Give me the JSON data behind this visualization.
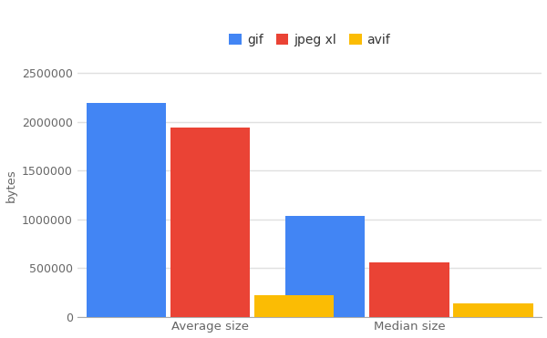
{
  "categories": [
    "Average size",
    "Median size"
  ],
  "series": {
    "gif": [
      2190000,
      1030000
    ],
    "jpeg xl": [
      1940000,
      560000
    ],
    "avif": [
      220000,
      140000
    ]
  },
  "colors": {
    "gif": "#4285F4",
    "jpeg xl": "#EA4335",
    "avif": "#FBBC04"
  },
  "ylabel": "bytes",
  "ylim": [
    0,
    2700000
  ],
  "yticks": [
    0,
    500000,
    1000000,
    1500000,
    2000000,
    2500000
  ],
  "bar_width": 0.18,
  "legend_labels": [
    "gif",
    "jpeg xl",
    "avif"
  ],
  "background_color": "#ffffff",
  "grid_color": "#e0e0e0",
  "tick_color": "#666666",
  "figsize": [
    6.0,
    3.71
  ],
  "dpi": 100
}
